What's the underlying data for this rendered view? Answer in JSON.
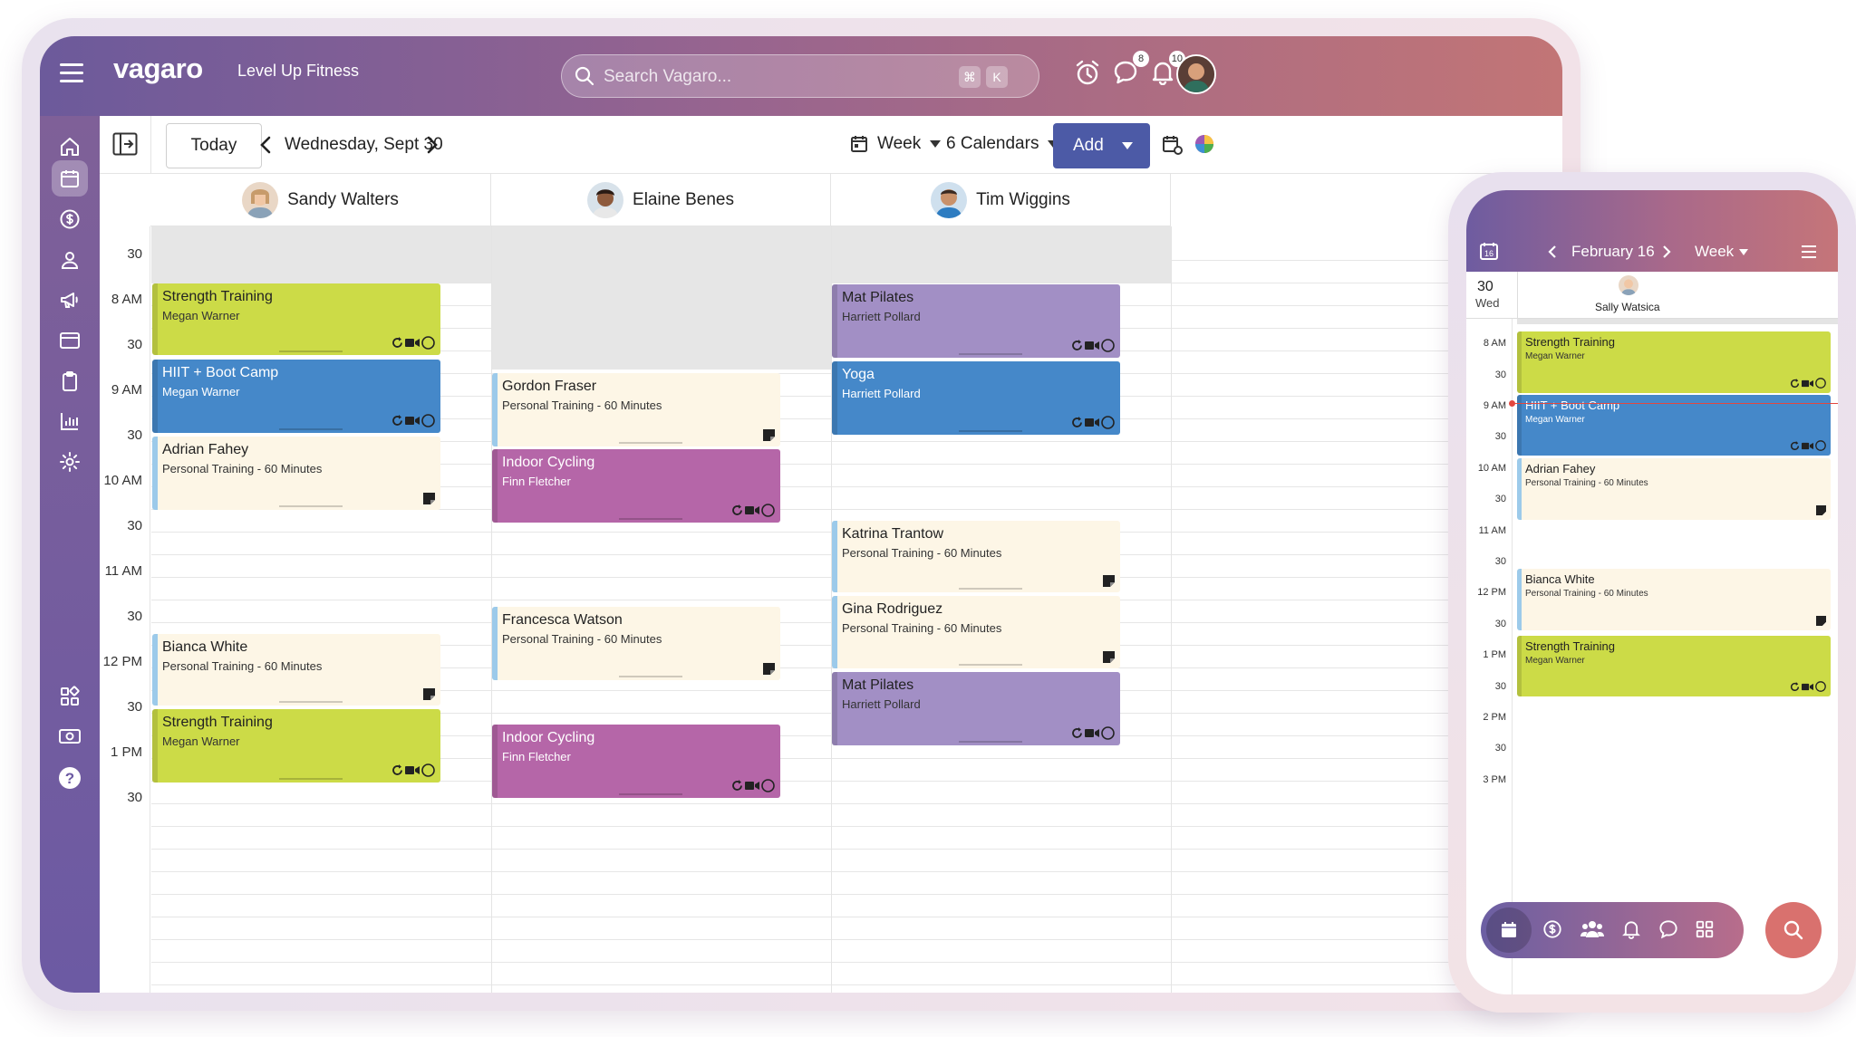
{
  "app": {
    "brand": "vagaro",
    "business": "Level Up Fitness",
    "search_placeholder": "Search Vagaro...",
    "shortcut_keys": [
      "⌘",
      "K"
    ],
    "chat_badge": "8",
    "notif_badge": "10"
  },
  "toolbar": {
    "today": "Today",
    "date": "Wednesday, Sept 30",
    "view": "Week",
    "calendars": "6 Calendars",
    "add": "Add"
  },
  "staff": [
    "Sandy Walters",
    "Elaine Benes",
    "Tim Wiggins"
  ],
  "times": [
    "30",
    "8 AM",
    "30",
    "9 AM",
    "30",
    "10 AM",
    "30",
    "11 AM",
    "30",
    "12 PM",
    "30",
    "1 PM",
    "30"
  ],
  "appointments": {
    "a1": {
      "title": "Strength Training",
      "sub": "Megan Warner"
    },
    "a2": {
      "title": "HIIT + Boot Camp",
      "sub": "Megan Warner"
    },
    "a3": {
      "title": "Adrian Fahey",
      "sub": "Personal Training - 60 Minutes"
    },
    "a4": {
      "title": "Bianca White",
      "sub": "Personal Training - 60 Minutes"
    },
    "a5": {
      "title": "Strength Training",
      "sub": "Megan Warner"
    },
    "b1": {
      "title": "Gordon Fraser",
      "sub": "Personal Training - 60 Minutes"
    },
    "b2": {
      "title": "Indoor Cycling",
      "sub": "Finn Fletcher"
    },
    "b3": {
      "title": "Francesca Watson",
      "sub": "Personal Training - 60 Minutes"
    },
    "b4": {
      "title": "Indoor Cycling",
      "sub": "Finn Fletcher"
    },
    "c1": {
      "title": "Mat Pilates",
      "sub": "Harriett Pollard"
    },
    "c2": {
      "title": "Yoga",
      "sub": "Harriett Pollard"
    },
    "c3": {
      "title": "Katrina Trantow",
      "sub": "Personal Training - 60 Minutes"
    },
    "c4": {
      "title": "Gina Rodriguez",
      "sub": "Personal Training - 60 Minutes"
    },
    "c5": {
      "title": "Mat Pilates",
      "sub": "Harriett Pollard"
    }
  },
  "phone": {
    "cal_day": "16",
    "date": "February 16",
    "view": "Week",
    "day_num": "30",
    "day_name": "Wed",
    "staff": "Sally Watsica",
    "times": [
      "8 AM",
      "30",
      "9 AM",
      "30",
      "10 AM",
      "30",
      "11 AM",
      "30",
      "12 PM",
      "30",
      "1 PM",
      "30",
      "2 PM",
      "30",
      "3 PM"
    ],
    "appointments": {
      "p1": {
        "title": "Strength Training",
        "sub": "Megan Warner"
      },
      "p2": {
        "title": "HIIT + Boot Camp",
        "sub": "Megan Warner"
      },
      "p3": {
        "title": "Adrian Fahey",
        "sub": "Personal Training - 60 Minutes"
      },
      "p4": {
        "title": "Bianca White",
        "sub": "Personal Training - 60 Minutes"
      },
      "p5": {
        "title": "Strength Training",
        "sub": "Megan Warner"
      }
    }
  },
  "colors": {
    "green": "#ccdb47",
    "blue": "#4588c9",
    "cream": "#fdf6e6",
    "magenta": "#b566a8",
    "purple": "#a28fc5",
    "add_button": "#4c5aa6"
  }
}
